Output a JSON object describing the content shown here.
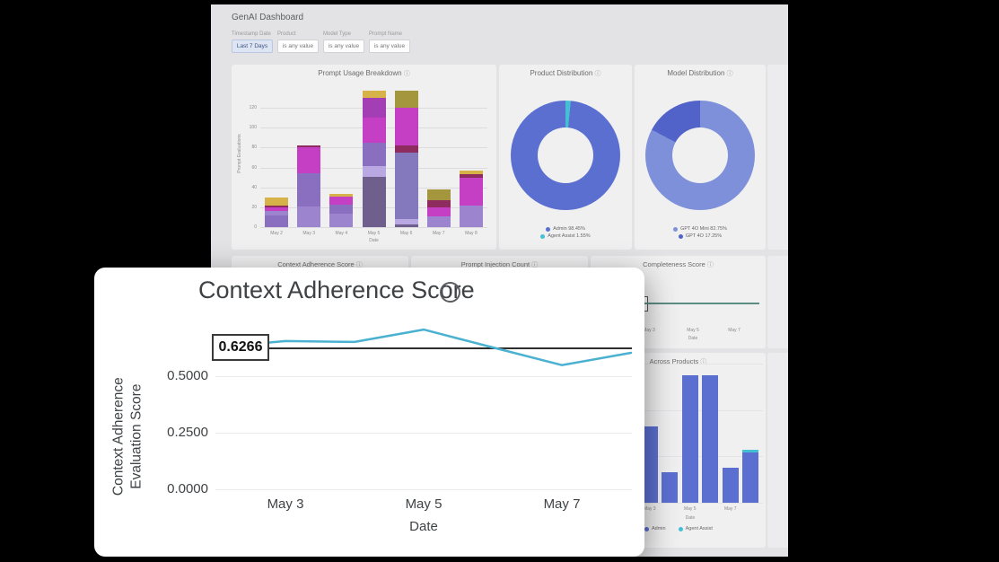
{
  "header": {
    "title": "GenAI Dashboard"
  },
  "filters": [
    {
      "label": "Timestamp Date",
      "value": "Last 7 Days",
      "active": true
    },
    {
      "label": "Product",
      "value": "is any value",
      "active": false
    },
    {
      "label": "Model Type",
      "value": "is any value",
      "active": false
    },
    {
      "label": "Prompt Name",
      "value": "is any value",
      "active": false
    }
  ],
  "tiles": {
    "prompt_injection": {
      "title": "Prompt Injection Count"
    }
  },
  "chart_data": [
    {
      "id": "prompt_usage",
      "type": "bar",
      "title": "Prompt Usage Breakdown",
      "xlabel": "Date",
      "ylabel": "Prompt Evaluations",
      "ylim": [
        0,
        140
      ],
      "y_ticks": [
        0,
        20,
        40,
        60,
        80,
        100,
        120
      ],
      "categories": [
        "May 2",
        "May 3",
        "May 4",
        "May 5",
        "May 6",
        "May 7",
        "May 8"
      ],
      "palette": {
        "purple": "#8a6fc0",
        "lavender": "#9c84cf",
        "lightlav": "#b9a8e2",
        "darkslate": "#6f5f8c",
        "slateblue": "#8579bd",
        "magenta": "#c53fc5",
        "violet": "#a33eb5",
        "maroon": "#8e2c60",
        "gold": "#d6b248",
        "olive": "#a4963d"
      },
      "bars": [
        [
          [
            "purple",
            12
          ],
          [
            "lavender",
            4
          ],
          [
            "magenta",
            4
          ],
          [
            "maroon",
            2
          ],
          [
            "gold",
            8
          ]
        ],
        [
          [
            "lavender",
            21
          ],
          [
            "purple",
            33
          ],
          [
            "magenta",
            26
          ],
          [
            "maroon",
            2
          ]
        ],
        [
          [
            "lavender",
            14
          ],
          [
            "purple",
            9
          ],
          [
            "magenta",
            8
          ],
          [
            "gold",
            2
          ]
        ],
        [
          [
            "darkslate",
            51
          ],
          [
            "lightlav",
            10
          ],
          [
            "purple",
            24
          ],
          [
            "magenta",
            25
          ],
          [
            "violet",
            20
          ],
          [
            "gold",
            7
          ]
        ],
        [
          [
            "darkslate",
            3
          ],
          [
            "lightlav",
            5
          ],
          [
            "slateblue",
            67
          ],
          [
            "maroon",
            7
          ],
          [
            "magenta",
            38
          ],
          [
            "olive",
            17
          ]
        ],
        [
          [
            "lavender",
            11
          ],
          [
            "magenta",
            9
          ],
          [
            "maroon",
            7
          ],
          [
            "olive",
            11
          ]
        ],
        [
          [
            "lavender",
            22
          ],
          [
            "magenta",
            28
          ],
          [
            "maroon",
            3
          ],
          [
            "gold",
            4
          ]
        ]
      ]
    },
    {
      "id": "product_distribution",
      "type": "pie",
      "title": "Product Distribution",
      "start_angle": 0,
      "slices": [
        {
          "label": "Agent Assist 1.55%",
          "value": 1.55,
          "color": "#45bfd3"
        },
        {
          "label": "Admin 98.45%",
          "value": 98.45,
          "color": "#5b6fd1"
        }
      ]
    },
    {
      "id": "model_distribution",
      "type": "pie",
      "title": "Model Distribution",
      "start_angle": 0,
      "slices": [
        {
          "label": "GPT 4O Mini 82.75%",
          "value": 82.75,
          "color": "#7e90da"
        },
        {
          "label": "GPT 4O 17.25%",
          "value": 17.25,
          "color": "#5163c8"
        }
      ]
    },
    {
      "id": "context_adherence",
      "type": "line",
      "title": "Context Adherence Score",
      "xlabel": "Date",
      "ylabel": "Context Adherence Evaluation Score",
      "ylim": [
        0,
        0.75
      ],
      "y_ticks": [
        0.0,
        0.25,
        0.5
      ],
      "y_tick_labels": [
        "0.0000",
        "0.2500",
        "0.5000"
      ],
      "x_ticks": [
        "May 3",
        "May 5",
        "May 7"
      ],
      "categories": [
        "May 2",
        "May 3",
        "May 4",
        "May 5",
        "May 6",
        "May 7",
        "May 8"
      ],
      "values": [
        0.627,
        0.655,
        0.651,
        0.706,
        0.627,
        0.549,
        0.603
      ],
      "reference_line": {
        "label": "0.6266",
        "value": 0.6266
      },
      "line_color": "#4ab1d0"
    },
    {
      "id": "completeness",
      "type": "line",
      "title": "Completeness Score",
      "xlabel": "Date",
      "x_ticks": [
        "May 3",
        "May 5",
        "May 7"
      ],
      "flat_line": true,
      "line_color": "#5c8d85"
    },
    {
      "id": "across_products",
      "type": "bar",
      "title": "Across Products",
      "xlabel": "Date",
      "ylim": [
        0,
        150
      ],
      "x_ticks": [
        "May 3",
        "May 5",
        "May 7"
      ],
      "categories": [
        "May 2",
        "May 3",
        "May 4",
        "May 5",
        "May 6",
        "May 7",
        "May 8"
      ],
      "series": [
        {
          "name": "Admin",
          "color": "#5b6fd1",
          "values": [
            30,
            82,
            33,
            137,
            137,
            38,
            54
          ]
        },
        {
          "name": "Agent Assist",
          "color": "#45bfd3",
          "values": [
            0,
            0,
            0,
            0,
            0,
            0,
            3
          ]
        }
      ]
    }
  ]
}
